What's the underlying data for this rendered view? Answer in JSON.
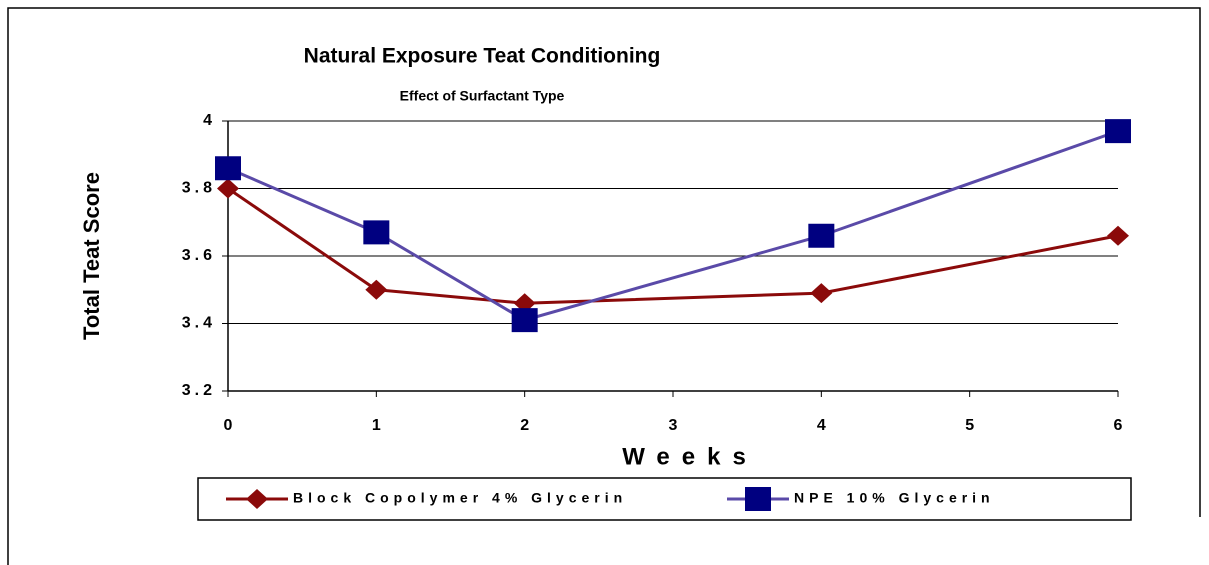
{
  "chart_data": {
    "type": "line",
    "title": "Natural Exposure Teat Conditioning",
    "subtitle": "Effect of Surfactant Type",
    "x_label": "Weeks",
    "y_label": "Total Teat Score",
    "x": [
      0,
      1,
      2,
      4,
      6
    ],
    "xlim": [
      0,
      6
    ],
    "xticks": [
      0,
      1,
      2,
      3,
      4,
      5,
      6
    ],
    "ylim": [
      3.2,
      4
    ],
    "yticks": [
      3.2,
      3.4,
      3.6,
      3.8,
      4
    ],
    "grid": true,
    "legend": "bottom",
    "series": [
      {
        "name": "Block Copolymer 4% Glycerin",
        "color": "#8b0a0a",
        "marker": "diamond",
        "marker_color": "#8b0a0a",
        "values": [
          3.8,
          3.5,
          3.46,
          3.49,
          3.66
        ]
      },
      {
        "name": "NPE 10% Glycerin",
        "color": "#5a4aa8",
        "marker": "square",
        "marker_color": "#000080",
        "values": [
          3.86,
          3.67,
          3.41,
          3.66,
          3.97
        ]
      }
    ]
  }
}
